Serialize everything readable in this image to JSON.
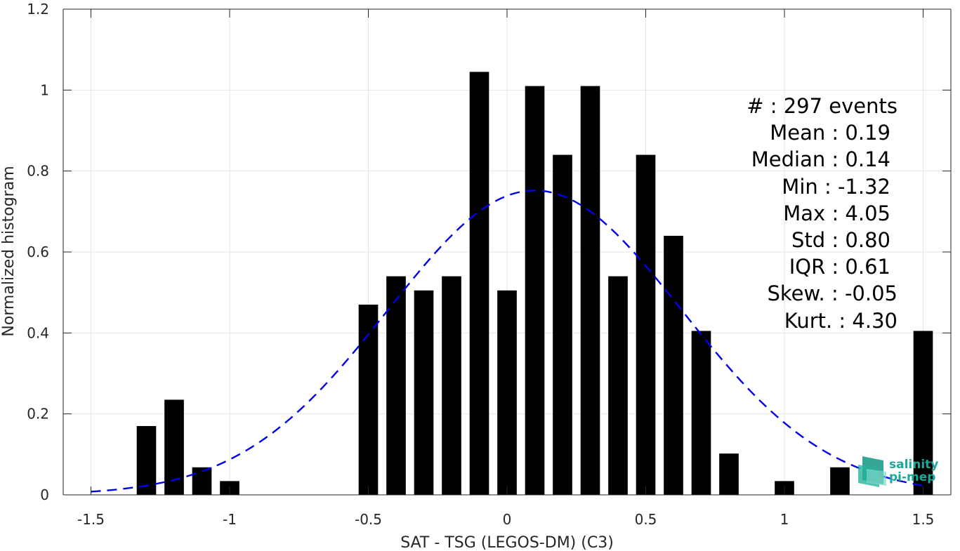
{
  "chart_data": {
    "type": "bar",
    "xlabel": "SAT - TSG (LEGOS-DM) (C3)",
    "ylabel": "Normalized histogram",
    "xlim": [
      -1.6,
      1.6
    ],
    "ylim": [
      0,
      1.2
    ],
    "xticks": [
      -1.5,
      -1,
      -0.5,
      0,
      0.5,
      1,
      1.5
    ],
    "xtick_labels": [
      "-1.5",
      "-1",
      "-0.5",
      "0",
      "0.5",
      "1",
      "1.5"
    ],
    "yticks": [
      0,
      0.2,
      0.4,
      0.6,
      0.8,
      1,
      1.2
    ],
    "ytick_labels": [
      "0",
      "0.2",
      "0.4",
      "0.6",
      "0.8",
      "1",
      "1.2"
    ],
    "grid": true,
    "bar_width": 0.07,
    "colors": {
      "bars": "#000000",
      "fit": "#0000ee",
      "grid": "#e6e6e6",
      "axis": "#262626",
      "logo": "#1aa89a"
    },
    "series": [
      {
        "kind": "histogram",
        "x": [
          -1.3,
          -1.2,
          -1.1,
          -1.0,
          -0.5,
          -0.4,
          -0.3,
          -0.2,
          -0.1,
          0.0,
          0.1,
          0.2,
          0.3,
          0.4,
          0.5,
          0.6,
          0.7,
          0.8,
          1.0,
          1.2,
          1.5
        ],
        "values": [
          0.17,
          0.235,
          0.068,
          0.034,
          0.47,
          0.54,
          0.505,
          0.54,
          1.045,
          0.505,
          1.01,
          0.84,
          1.01,
          0.54,
          0.84,
          0.64,
          0.405,
          0.102,
          0.034,
          0.068,
          0.405
        ]
      },
      {
        "kind": "normal-fit-dashed",
        "mean": 0.1,
        "std": 0.53,
        "peak": 0.752,
        "x_range": [
          -1.5,
          1.5
        ]
      }
    ],
    "annotations": [
      "#  : 297 events",
      "Mean : 0.19",
      "Median : 0.14",
      "Min : -1.32",
      "Max : 4.05",
      "Std : 0.80",
      "IQR : 0.61",
      "Skew. : -0.05",
      "Kurt. : 4.30"
    ]
  },
  "logo": {
    "line1": "salinity",
    "line2": "pi-mep"
  }
}
